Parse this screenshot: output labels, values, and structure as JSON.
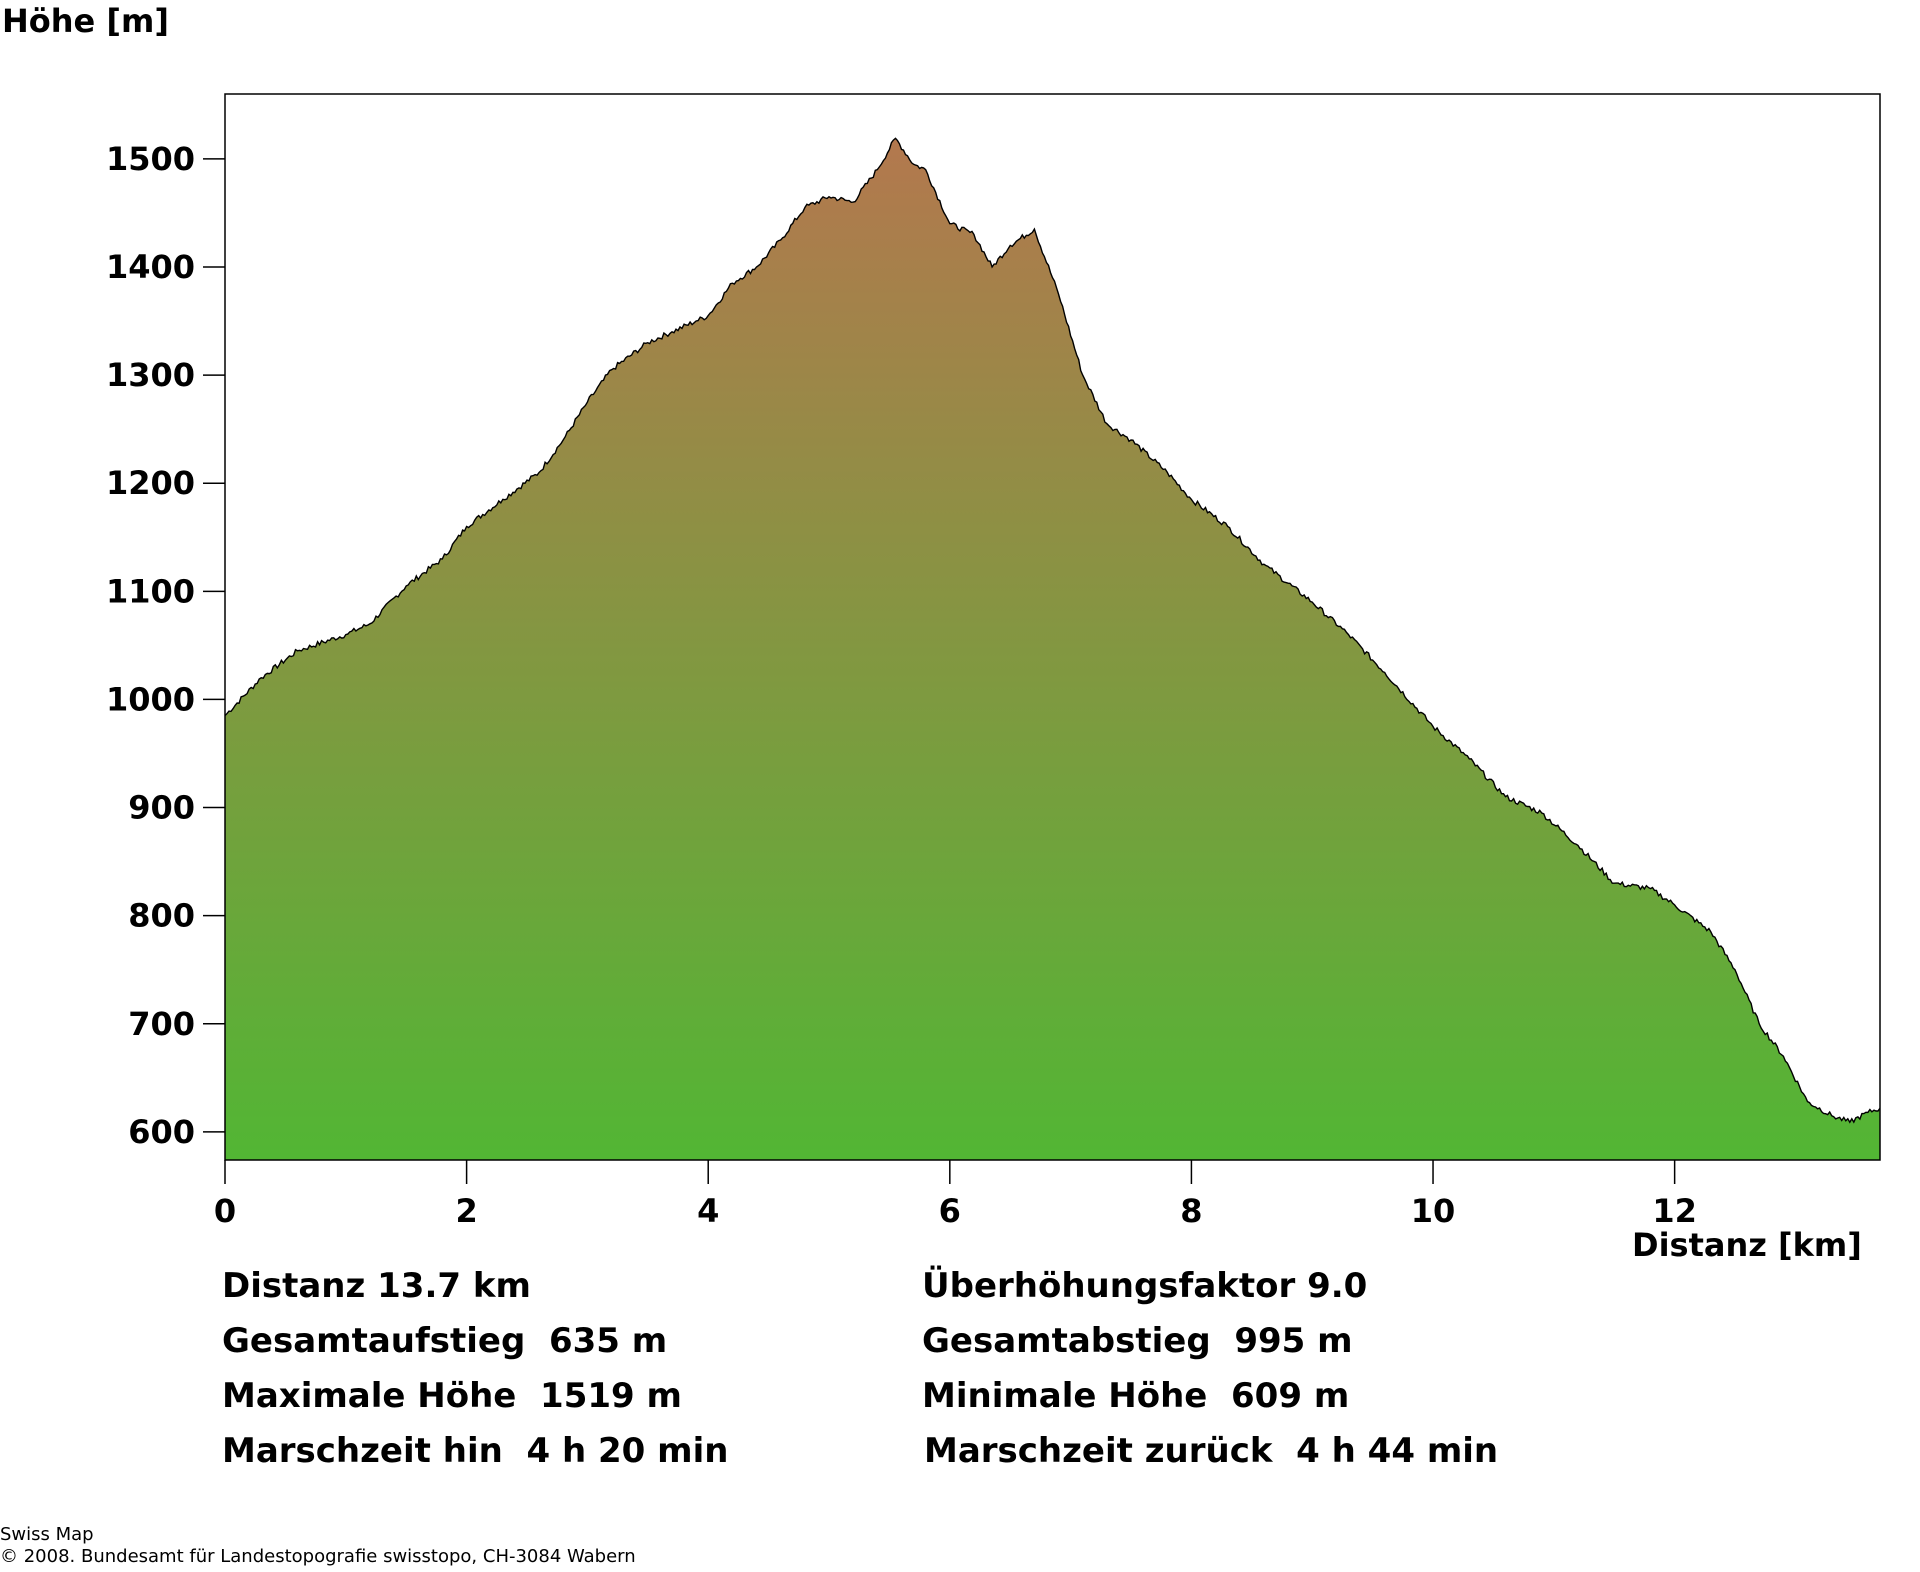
{
  "chart_data": {
    "type": "area",
    "title": "",
    "ylabel": "Höhe [m]",
    "xlabel": "Distanz [km]",
    "xlim": [
      0,
      13.7
    ],
    "ylim": [
      574,
      1560
    ],
    "yticks": [
      600,
      700,
      800,
      900,
      1000,
      1100,
      1200,
      1300,
      1400,
      1500
    ],
    "xticks": [
      0,
      2,
      4,
      6,
      8,
      10,
      12
    ],
    "fill_gradient": {
      "top": "#b3784e",
      "bottom": "#52b634"
    },
    "line_color": "#000000",
    "x": [
      0,
      0.3,
      0.6,
      1.0,
      1.2,
      1.5,
      1.8,
      2.0,
      2.3,
      2.6,
      2.8,
      3.0,
      3.2,
      3.5,
      3.7,
      3.9,
      4.0,
      4.2,
      4.4,
      4.6,
      4.8,
      5.0,
      5.2,
      5.4,
      5.55,
      5.7,
      5.8,
      6.0,
      6.2,
      6.35,
      6.5,
      6.7,
      6.9,
      7.1,
      7.3,
      7.5,
      7.8,
      8.0,
      8.3,
      8.6,
      9.0,
      9.3,
      9.6,
      10.0,
      10.3,
      10.6,
      10.9,
      11.2,
      11.5,
      11.8,
      12.0,
      12.3,
      12.5,
      12.7,
      12.9,
      13.1,
      13.3,
      13.45,
      13.6,
      13.7
    ],
    "y": [
      985,
      1020,
      1045,
      1060,
      1070,
      1105,
      1130,
      1160,
      1185,
      1210,
      1240,
      1275,
      1305,
      1330,
      1340,
      1350,
      1355,
      1385,
      1400,
      1425,
      1455,
      1465,
      1460,
      1490,
      1519,
      1495,
      1490,
      1440,
      1430,
      1400,
      1420,
      1435,
      1375,
      1300,
      1255,
      1240,
      1210,
      1185,
      1160,
      1125,
      1090,
      1060,
      1025,
      975,
      945,
      910,
      895,
      865,
      830,
      825,
      810,
      785,
      750,
      700,
      670,
      628,
      615,
      609,
      618,
      622
    ]
  },
  "stats": {
    "distanz": "Distanz 13.7 km",
    "ueberhoehung": "Überhöhungsfaktor 9.0",
    "aufstieg": "Gesamtaufstieg  635 m",
    "abstieg": "Gesamtabstieg  995 m",
    "max_hoehe": "Maximale Höhe  1519 m",
    "min_hoehe": "Minimale Höhe  609 m",
    "zeit_hin": "Marschzeit hin  4 h 20 min",
    "zeit_zurueck": "Marschzeit zurück  4 h 44 min"
  },
  "footer": {
    "source": "Swiss Map",
    "copyright": "© 2008. Bundesamt für Landestopografie swisstopo, CH-3084 Wabern"
  }
}
